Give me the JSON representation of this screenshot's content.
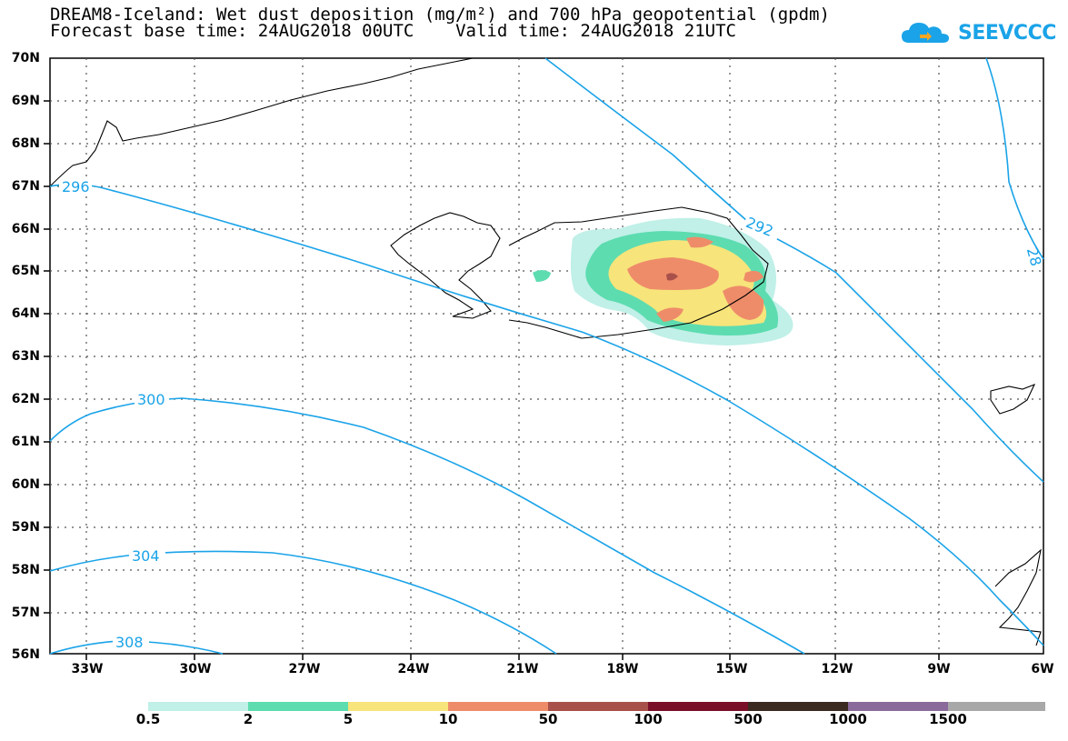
{
  "title": {
    "line1": "DREAM8-Iceland: Wet dust deposition (mg/m²) and 700 hPa geopotential (gpdm)",
    "line2": "Forecast base time: 24AUG2018 00UTC    Valid time: 24AUG2018 21UTC"
  },
  "logo": {
    "text": "SEEVCCC",
    "icon": "cloud-icon",
    "color": "#1aa3e8"
  },
  "map": {
    "lat_labels": [
      "70N",
      "69N",
      "68N",
      "67N",
      "66N",
      "65N",
      "64N",
      "63N",
      "62N",
      "61N",
      "60N",
      "59N",
      "58N",
      "57N",
      "56N"
    ],
    "lon_labels": [
      "33W",
      "30W",
      "27W",
      "24W",
      "21W",
      "18W",
      "15W",
      "12W",
      "9W",
      "6W"
    ],
    "contour_color": "#1aa3e8",
    "contour_labels": [
      "296",
      "292",
      "300",
      "304",
      "308",
      "28"
    ]
  },
  "colorbar": {
    "labels": [
      "0.5",
      "2",
      "5",
      "10",
      "50",
      "100",
      "500",
      "1000",
      "1500"
    ],
    "colors": [
      "#c0f0e8",
      "#5ddcb0",
      "#f7e47a",
      "#ee8c6a",
      "#a8504a",
      "#7a0f2a",
      "#3a2a20",
      "#8a6a9a",
      "#a8a8a8"
    ]
  }
}
